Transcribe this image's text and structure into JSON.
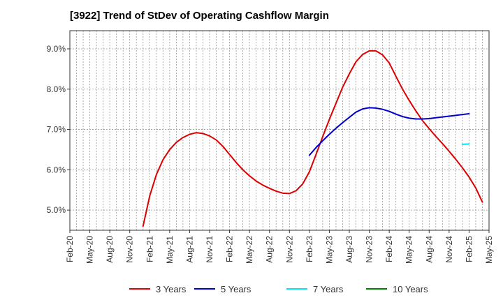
{
  "chart_data": {
    "type": "line",
    "title": "[3922]  Trend of StDev of Operating Cashflow Margin",
    "xlabel": "",
    "ylabel": "",
    "ylim": [
      4.5,
      9.45
    ],
    "yticks": [
      5.0,
      6.0,
      7.0,
      8.0,
      9.0
    ],
    "ytick_labels": [
      "5.0%",
      "6.0%",
      "7.0%",
      "8.0%",
      "9.0%"
    ],
    "x_start": "2020-02",
    "x_end": "2025-05",
    "xtick_labels": [
      "Feb-20",
      "May-20",
      "Aug-20",
      "Nov-20",
      "Feb-21",
      "May-21",
      "Aug-21",
      "Nov-21",
      "Feb-22",
      "May-22",
      "Aug-22",
      "Nov-22",
      "Feb-23",
      "May-23",
      "Aug-23",
      "Nov-23",
      "Feb-24",
      "May-24",
      "Aug-24",
      "Nov-24",
      "Feb-25",
      "May-25"
    ],
    "grid": true,
    "legend_position": "bottom",
    "series": [
      {
        "name": "3 Years",
        "color": "#dd0000",
        "points": [
          [
            "2021-01",
            4.6
          ],
          [
            "2021-02",
            5.35
          ],
          [
            "2021-03",
            5.88
          ],
          [
            "2021-04",
            6.25
          ],
          [
            "2021-05",
            6.5
          ],
          [
            "2021-06",
            6.68
          ],
          [
            "2021-07",
            6.8
          ],
          [
            "2021-08",
            6.88
          ],
          [
            "2021-09",
            6.92
          ],
          [
            "2021-10",
            6.9
          ],
          [
            "2021-11",
            6.84
          ],
          [
            "2021-12",
            6.74
          ],
          [
            "2022-01",
            6.58
          ],
          [
            "2022-02",
            6.38
          ],
          [
            "2022-03",
            6.18
          ],
          [
            "2022-04",
            6.0
          ],
          [
            "2022-05",
            5.85
          ],
          [
            "2022-06",
            5.72
          ],
          [
            "2022-07",
            5.62
          ],
          [
            "2022-08",
            5.54
          ],
          [
            "2022-09",
            5.47
          ],
          [
            "2022-10",
            5.42
          ],
          [
            "2022-11",
            5.41
          ],
          [
            "2022-12",
            5.48
          ],
          [
            "2023-01",
            5.65
          ],
          [
            "2023-02",
            5.95
          ],
          [
            "2023-03",
            6.38
          ],
          [
            "2023-04",
            6.82
          ],
          [
            "2023-05",
            7.25
          ],
          [
            "2023-06",
            7.65
          ],
          [
            "2023-07",
            8.05
          ],
          [
            "2023-08",
            8.38
          ],
          [
            "2023-09",
            8.68
          ],
          [
            "2023-10",
            8.86
          ],
          [
            "2023-11",
            8.95
          ],
          [
            "2023-12",
            8.95
          ],
          [
            "2024-01",
            8.85
          ],
          [
            "2024-02",
            8.65
          ],
          [
            "2024-03",
            8.32
          ],
          [
            "2024-04",
            8.0
          ],
          [
            "2024-05",
            7.72
          ],
          [
            "2024-06",
            7.46
          ],
          [
            "2024-07",
            7.22
          ],
          [
            "2024-08",
            7.02
          ],
          [
            "2024-09",
            6.83
          ],
          [
            "2024-10",
            6.65
          ],
          [
            "2024-11",
            6.46
          ],
          [
            "2024-12",
            6.26
          ],
          [
            "2025-01",
            6.05
          ],
          [
            "2025-02",
            5.82
          ],
          [
            "2025-03",
            5.55
          ],
          [
            "2025-04",
            5.2
          ]
        ]
      },
      {
        "name": "5 Years",
        "color": "#0000cc",
        "points": [
          [
            "2023-02",
            6.36
          ],
          [
            "2023-03",
            6.55
          ],
          [
            "2023-04",
            6.72
          ],
          [
            "2023-05",
            6.88
          ],
          [
            "2023-06",
            7.03
          ],
          [
            "2023-07",
            7.17
          ],
          [
            "2023-08",
            7.3
          ],
          [
            "2023-09",
            7.43
          ],
          [
            "2023-10",
            7.51
          ],
          [
            "2023-11",
            7.54
          ],
          [
            "2023-12",
            7.53
          ],
          [
            "2024-01",
            7.5
          ],
          [
            "2024-02",
            7.45
          ],
          [
            "2024-03",
            7.38
          ],
          [
            "2024-04",
            7.32
          ],
          [
            "2024-05",
            7.28
          ],
          [
            "2024-06",
            7.26
          ],
          [
            "2024-07",
            7.26
          ],
          [
            "2024-08",
            7.27
          ],
          [
            "2024-09",
            7.29
          ],
          [
            "2024-10",
            7.31
          ],
          [
            "2024-11",
            7.33
          ],
          [
            "2024-12",
            7.35
          ],
          [
            "2025-01",
            7.37
          ],
          [
            "2025-02",
            7.39
          ]
        ]
      },
      {
        "name": "7 Years",
        "color": "#00e5ee",
        "points": [
          [
            "2025-01",
            6.63
          ],
          [
            "2025-02",
            6.64
          ]
        ]
      },
      {
        "name": "10 Years",
        "color": "#008000",
        "points": []
      }
    ]
  }
}
